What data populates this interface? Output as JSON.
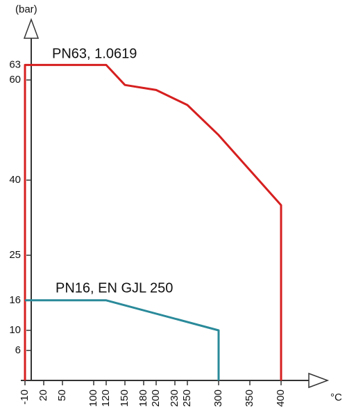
{
  "chart_data": {
    "type": "line",
    "y_label": "(bar)",
    "x_label": "°C",
    "xlim": [
      -15,
      470
    ],
    "ylim": [
      0,
      72
    ],
    "xticks": [
      -10,
      20,
      50,
      100,
      120,
      150,
      180,
      200,
      230,
      250,
      300,
      350,
      400
    ],
    "yticks": [
      6,
      10,
      16,
      25,
      40,
      60,
      63
    ],
    "series": [
      {
        "name": "PN63, 1.0619",
        "color": "#d61f1f",
        "x": [
          -10,
          -10,
          120,
          150,
          200,
          250,
          300,
          350,
          400,
          400
        ],
        "values": [
          0,
          63,
          63,
          59,
          58,
          55,
          49,
          42,
          35,
          0
        ]
      },
      {
        "name": "PN16, EN GJL 250",
        "color": "#2a8a9a",
        "x": [
          -10,
          120,
          300,
          300
        ],
        "values": [
          16,
          16,
          10,
          0
        ]
      }
    ]
  }
}
